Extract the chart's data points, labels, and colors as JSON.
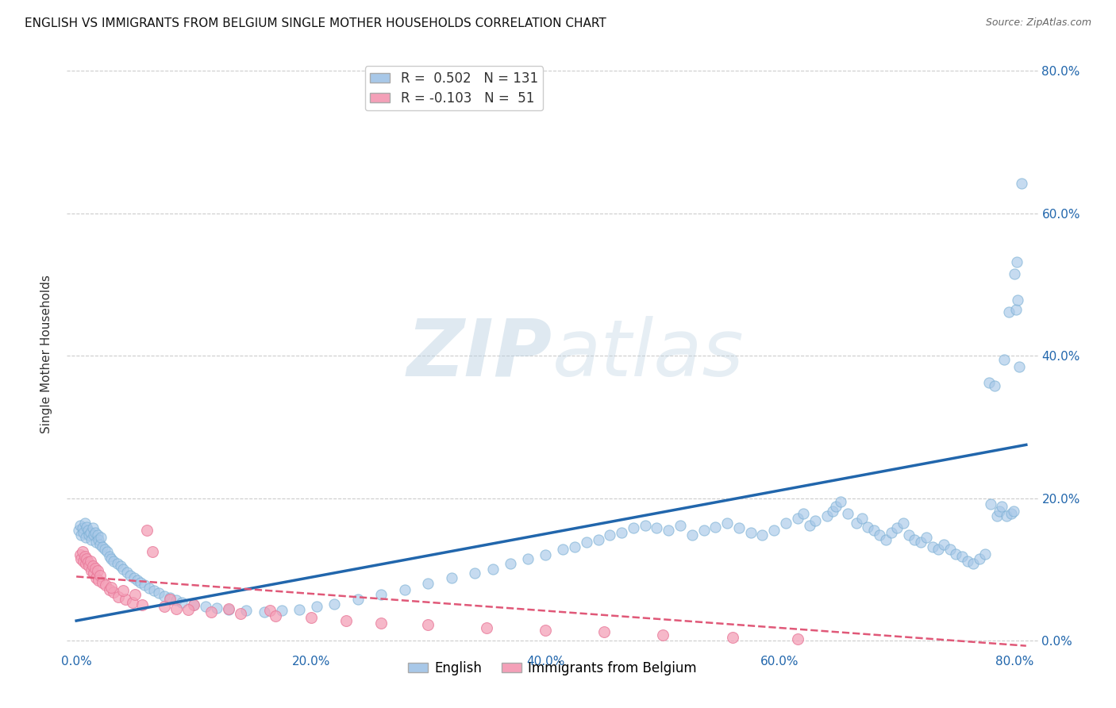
{
  "title": "ENGLISH VS IMMIGRANTS FROM BELGIUM SINGLE MOTHER HOUSEHOLDS CORRELATION CHART",
  "source": "Source: ZipAtlas.com",
  "ylabel": "Single Mother Households",
  "english_R": 0.502,
  "english_N": 131,
  "belgium_R": -0.103,
  "belgium_N": 51,
  "english_color": "#a8c8e8",
  "english_edge_color": "#7aafd4",
  "english_line_color": "#2166ac",
  "belgium_color": "#f4a0b8",
  "belgium_edge_color": "#e87898",
  "belgium_line_color": "#e05878",
  "watermark_zip": "ZIP",
  "watermark_atlas": "atlas",
  "watermark_color": "#d0e4f0",
  "legend_border_color": "#cccccc",
  "grid_color": "#cccccc",
  "xlim": [
    -0.008,
    0.82
  ],
  "ylim": [
    -0.015,
    0.82
  ],
  "x_ticks": [
    0.0,
    0.2,
    0.4,
    0.6,
    0.8
  ],
  "x_labels": [
    "0.0%",
    "20.0%",
    "40.0%",
    "60.0%",
    "80.0%"
  ],
  "y_ticks": [
    0.0,
    0.2,
    0.4,
    0.6,
    0.8
  ],
  "y_labels": [
    "0.0%",
    "20.0%",
    "40.0%",
    "60.0%",
    "80.0%"
  ],
  "eng_x": [
    0.002,
    0.003,
    0.004,
    0.005,
    0.006,
    0.007,
    0.008,
    0.009,
    0.01,
    0.011,
    0.012,
    0.013,
    0.014,
    0.015,
    0.016,
    0.017,
    0.018,
    0.019,
    0.02,
    0.021,
    0.022,
    0.024,
    0.026,
    0.028,
    0.03,
    0.032,
    0.035,
    0.038,
    0.04,
    0.043,
    0.046,
    0.049,
    0.052,
    0.055,
    0.058,
    0.062,
    0.066,
    0.07,
    0.075,
    0.08,
    0.085,
    0.09,
    0.1,
    0.11,
    0.12,
    0.13,
    0.145,
    0.16,
    0.175,
    0.19,
    0.205,
    0.22,
    0.24,
    0.26,
    0.28,
    0.3,
    0.32,
    0.34,
    0.355,
    0.37,
    0.385,
    0.4,
    0.415,
    0.425,
    0.435,
    0.445,
    0.455,
    0.465,
    0.475,
    0.485,
    0.495,
    0.505,
    0.515,
    0.525,
    0.535,
    0.545,
    0.555,
    0.565,
    0.575,
    0.585,
    0.595,
    0.605,
    0.615,
    0.62,
    0.625,
    0.63,
    0.64,
    0.645,
    0.648,
    0.652,
    0.658,
    0.665,
    0.67,
    0.675,
    0.68,
    0.685,
    0.69,
    0.695,
    0.7,
    0.705,
    0.71,
    0.715,
    0.72,
    0.725,
    0.73,
    0.735,
    0.74,
    0.745,
    0.75,
    0.755,
    0.76,
    0.765,
    0.77,
    0.775,
    0.778,
    0.78,
    0.783,
    0.785,
    0.787,
    0.789,
    0.791,
    0.793,
    0.795,
    0.797,
    0.799,
    0.8,
    0.801,
    0.802,
    0.803,
    0.804,
    0.806
  ],
  "eng_y": [
    0.155,
    0.162,
    0.148,
    0.158,
    0.152,
    0.165,
    0.145,
    0.16,
    0.155,
    0.148,
    0.152,
    0.142,
    0.158,
    0.148,
    0.152,
    0.138,
    0.148,
    0.142,
    0.135,
    0.145,
    0.132,
    0.128,
    0.125,
    0.118,
    0.115,
    0.112,
    0.108,
    0.105,
    0.1,
    0.096,
    0.092,
    0.088,
    0.085,
    0.082,
    0.078,
    0.074,
    0.07,
    0.067,
    0.063,
    0.06,
    0.057,
    0.054,
    0.05,
    0.048,
    0.046,
    0.044,
    0.042,
    0.04,
    0.042,
    0.044,
    0.048,
    0.052,
    0.058,
    0.065,
    0.072,
    0.08,
    0.088,
    0.095,
    0.1,
    0.108,
    0.115,
    0.12,
    0.128,
    0.132,
    0.138,
    0.142,
    0.148,
    0.152,
    0.158,
    0.162,
    0.158,
    0.155,
    0.162,
    0.148,
    0.155,
    0.16,
    0.165,
    0.158,
    0.152,
    0.148,
    0.155,
    0.165,
    0.172,
    0.178,
    0.162,
    0.168,
    0.175,
    0.182,
    0.188,
    0.195,
    0.178,
    0.165,
    0.172,
    0.16,
    0.155,
    0.148,
    0.142,
    0.152,
    0.158,
    0.165,
    0.148,
    0.142,
    0.138,
    0.145,
    0.132,
    0.128,
    0.135,
    0.128,
    0.122,
    0.118,
    0.112,
    0.108,
    0.115,
    0.122,
    0.362,
    0.192,
    0.358,
    0.175,
    0.182,
    0.188,
    0.395,
    0.175,
    0.462,
    0.178,
    0.182,
    0.515,
    0.465,
    0.532,
    0.478,
    0.385,
    0.642
  ],
  "bel_x": [
    0.003,
    0.004,
    0.005,
    0.006,
    0.007,
    0.008,
    0.009,
    0.01,
    0.011,
    0.012,
    0.013,
    0.014,
    0.015,
    0.016,
    0.017,
    0.018,
    0.019,
    0.02,
    0.022,
    0.025,
    0.028,
    0.032,
    0.036,
    0.042,
    0.048,
    0.056,
    0.065,
    0.08,
    0.1,
    0.13,
    0.165,
    0.03,
    0.05,
    0.075,
    0.095,
    0.115,
    0.14,
    0.17,
    0.2,
    0.23,
    0.26,
    0.3,
    0.35,
    0.4,
    0.45,
    0.5,
    0.56,
    0.615,
    0.04,
    0.06,
    0.085
  ],
  "bel_y": [
    0.12,
    0.115,
    0.125,
    0.112,
    0.118,
    0.108,
    0.115,
    0.11,
    0.105,
    0.112,
    0.098,
    0.105,
    0.095,
    0.102,
    0.088,
    0.098,
    0.085,
    0.092,
    0.082,
    0.078,
    0.072,
    0.068,
    0.062,
    0.058,
    0.054,
    0.05,
    0.125,
    0.058,
    0.05,
    0.045,
    0.042,
    0.075,
    0.065,
    0.048,
    0.044,
    0.04,
    0.038,
    0.035,
    0.032,
    0.028,
    0.025,
    0.022,
    0.018,
    0.015,
    0.012,
    0.008,
    0.005,
    0.002,
    0.07,
    0.155,
    0.045
  ]
}
